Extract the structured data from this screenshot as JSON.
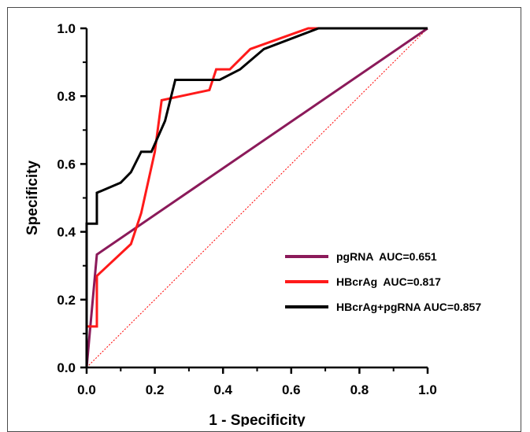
{
  "chart_data": {
    "type": "line",
    "title": "",
    "xlabel": "1 - Specificity",
    "ylabel": "Specificity",
    "xlim": [
      0,
      1
    ],
    "ylim": [
      0,
      1
    ],
    "x_ticks": [
      "0.0",
      "0.2",
      "0.4",
      "0.6",
      "0.8",
      "1.0"
    ],
    "y_ticks": [
      "0.0",
      "0.2",
      "0.4",
      "0.6",
      "0.8",
      "1.0"
    ],
    "grid": false,
    "legend_position": "lower-right",
    "reference_line": {
      "x": [
        0,
        1
      ],
      "y": [
        0,
        1
      ],
      "color": "#ff0000",
      "style": "dotted"
    },
    "series": [
      {
        "name": "pgRNA  AUC=0.651",
        "color": "#8b1a5a",
        "x": [
          0,
          0.03,
          1.0
        ],
        "y": [
          0,
          0.333,
          1.0
        ]
      },
      {
        "name": "HBcrAg  AUC=0.817",
        "color": "#ff1a1a",
        "x": [
          0,
          0.0,
          0.03,
          0.03,
          0.13,
          0.16,
          0.2,
          0.22,
          0.36,
          0.38,
          0.42,
          0.48,
          0.65,
          1.0
        ],
        "y": [
          0,
          0.121,
          0.121,
          0.27,
          0.364,
          0.455,
          0.636,
          0.788,
          0.818,
          0.879,
          0.879,
          0.939,
          1.0,
          1.0
        ]
      },
      {
        "name": "HBcrAg+pgRNA AUC=0.857",
        "color": "#000000",
        "x": [
          0,
          0.0,
          0.03,
          0.03,
          0.1,
          0.13,
          0.16,
          0.19,
          0.23,
          0.26,
          0.39,
          0.45,
          0.52,
          0.68,
          1.0
        ],
        "y": [
          0,
          0.424,
          0.424,
          0.515,
          0.545,
          0.576,
          0.636,
          0.636,
          0.727,
          0.848,
          0.848,
          0.879,
          0.939,
          1.0,
          1.0
        ]
      }
    ]
  }
}
